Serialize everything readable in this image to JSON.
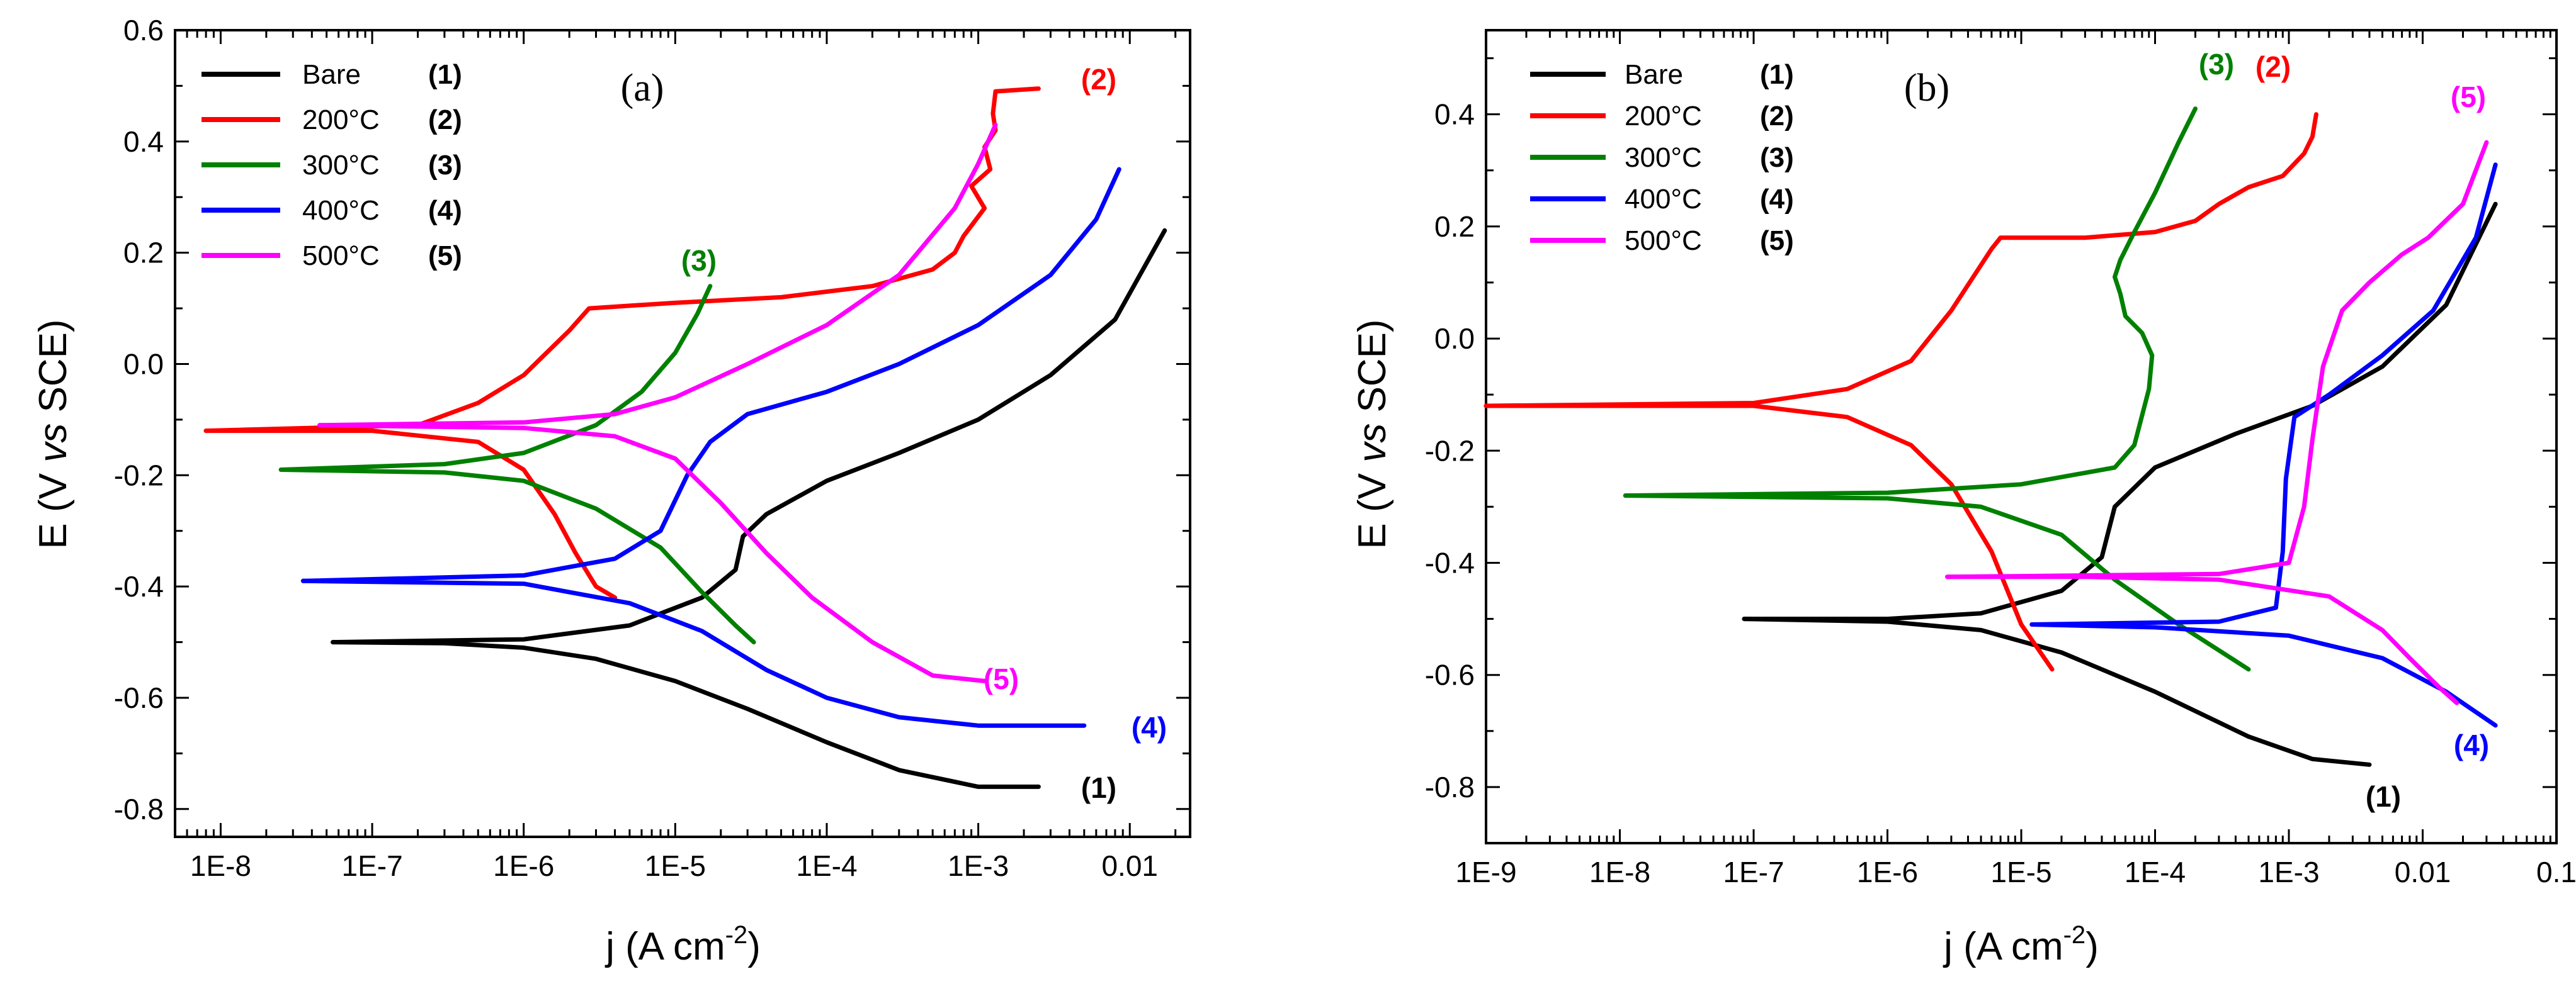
{
  "colors": {
    "Bare": "#000000",
    "200°C": "#ff0000",
    "300°C": "#008000",
    "400°C": "#0000ff",
    "500°C": "#ff00ff"
  },
  "chart_data": [
    {
      "type": "line",
      "panel": "(a)",
      "xlabel": "j (A cm",
      "xlabel_sup": "-2",
      "xlabel_suffix": ")",
      "ylabel": "E (V",
      "ylabel_vs": "vs",
      "ylabel_suffix": "SCE)",
      "xscale": "log",
      "xlim": [
        5e-09,
        0.025
      ],
      "ylim": [
        -0.85,
        0.6
      ],
      "xticks": [
        1e-08,
        1e-07,
        1e-06,
        1e-05,
        0.0001,
        0.001,
        0.01
      ],
      "xtick_labels": [
        "1E-8",
        "1E-7",
        "1E-6",
        "1E-5",
        "1E-4",
        "1E-3",
        "0.01"
      ],
      "yticks": [
        -0.8,
        -0.6,
        -0.4,
        -0.2,
        0.0,
        0.2,
        0.4,
        0.6
      ],
      "ytick_labels": [
        "-0.8",
        "-0.6",
        "-0.4",
        "-0.2",
        "0.0",
        "0.2",
        "0.4",
        "0.6"
      ],
      "legend_position": "top-left",
      "legend": [
        {
          "name": "Bare",
          "num": "(1)"
        },
        {
          "name": "200°C",
          "num": "(2)"
        },
        {
          "name": "300°C",
          "num": "(3)"
        },
        {
          "name": "400°C",
          "num": "(4)"
        },
        {
          "name": "500°C",
          "num": "(5)"
        }
      ],
      "series": [
        {
          "name": "Bare",
          "label": "(1)",
          "cathodic": [
            [
              5.5e-08,
              -0.5
            ],
            [
              3e-07,
              -0.502
            ],
            [
              1e-06,
              -0.51
            ],
            [
              3e-06,
              -0.53
            ],
            [
              1e-05,
              -0.57
            ],
            [
              3e-05,
              -0.62
            ],
            [
              0.0001,
              -0.68
            ],
            [
              0.0003,
              -0.73
            ],
            [
              0.001,
              -0.76
            ],
            [
              0.0025,
              -0.76
            ]
          ],
          "anodic": [
            [
              5.5e-08,
              -0.5
            ],
            [
              1e-06,
              -0.495
            ],
            [
              5e-06,
              -0.47
            ],
            [
              1.5e-05,
              -0.42
            ],
            [
              2.5e-05,
              -0.37
            ],
            [
              2.8e-05,
              -0.31
            ],
            [
              4e-05,
              -0.27
            ],
            [
              0.0001,
              -0.21
            ],
            [
              0.0003,
              -0.16
            ],
            [
              0.001,
              -0.1
            ],
            [
              0.003,
              -0.02
            ],
            [
              0.008,
              0.08
            ],
            [
              0.017,
              0.24
            ]
          ]
        },
        {
          "name": "200°C",
          "label": "(2)",
          "cathodic": [
            [
              8e-09,
              -0.12
            ],
            [
              1e-07,
              -0.12
            ],
            [
              5e-07,
              -0.14
            ],
            [
              1e-06,
              -0.19
            ],
            [
              1.6e-06,
              -0.27
            ],
            [
              2.2e-06,
              -0.34
            ],
            [
              3e-06,
              -0.4
            ],
            [
              4e-06,
              -0.42
            ]
          ],
          "anodic": [
            [
              8e-09,
              -0.12
            ],
            [
              2e-07,
              -0.11
            ],
            [
              5e-07,
              -0.07
            ],
            [
              1e-06,
              -0.02
            ],
            [
              2e-06,
              0.06
            ],
            [
              2.7e-06,
              0.1
            ],
            [
              1e-05,
              0.11
            ],
            [
              5e-05,
              0.12
            ],
            [
              0.0001,
              0.13
            ],
            [
              0.0002,
              0.14
            ],
            [
              0.0005,
              0.17
            ],
            [
              0.0007,
              0.2
            ],
            [
              0.0008,
              0.23
            ],
            [
              0.0011,
              0.28
            ],
            [
              0.0009,
              0.32
            ],
            [
              0.0012,
              0.35
            ],
            [
              0.0011,
              0.39
            ],
            [
              0.0013,
              0.42
            ],
            [
              0.00125,
              0.45
            ],
            [
              0.0013,
              0.49
            ],
            [
              0.0025,
              0.495
            ]
          ]
        },
        {
          "name": "300°C",
          "label": "(3)",
          "cathodic": [
            [
              2.5e-08,
              -0.19
            ],
            [
              3e-07,
              -0.195
            ],
            [
              1e-06,
              -0.21
            ],
            [
              3e-06,
              -0.26
            ],
            [
              8e-06,
              -0.33
            ],
            [
              1.5e-05,
              -0.41
            ],
            [
              2.5e-05,
              -0.47
            ],
            [
              3.3e-05,
              -0.5
            ]
          ],
          "anodic": [
            [
              2.5e-08,
              -0.19
            ],
            [
              3e-07,
              -0.18
            ],
            [
              1e-06,
              -0.16
            ],
            [
              3e-06,
              -0.11
            ],
            [
              6e-06,
              -0.05
            ],
            [
              1e-05,
              0.02
            ],
            [
              1.4e-05,
              0.09
            ],
            [
              1.7e-05,
              0.14
            ]
          ]
        },
        {
          "name": "400°C",
          "label": "(4)",
          "cathodic": [
            [
              3.5e-08,
              -0.39
            ],
            [
              1e-06,
              -0.395
            ],
            [
              5e-06,
              -0.43
            ],
            [
              1.5e-05,
              -0.48
            ],
            [
              4e-05,
              -0.55
            ],
            [
              0.0001,
              -0.6
            ],
            [
              0.0003,
              -0.635
            ],
            [
              0.001,
              -0.65
            ],
            [
              0.005,
              -0.65
            ]
          ],
          "anodic": [
            [
              3.5e-08,
              -0.39
            ],
            [
              1e-06,
              -0.38
            ],
            [
              4e-06,
              -0.35
            ],
            [
              8e-06,
              -0.3
            ],
            [
              1.2e-05,
              -0.2
            ],
            [
              1.7e-05,
              -0.14
            ],
            [
              3e-05,
              -0.09
            ],
            [
              0.0001,
              -0.05
            ],
            [
              0.0003,
              0.0
            ],
            [
              0.001,
              0.07
            ],
            [
              0.003,
              0.16
            ],
            [
              0.006,
              0.26
            ],
            [
              0.0085,
              0.35
            ]
          ]
        },
        {
          "name": "500°C",
          "label": "(5)",
          "cathodic": [
            [
              4.5e-08,
              -0.11
            ],
            [
              1e-06,
              -0.115
            ],
            [
              4e-06,
              -0.13
            ],
            [
              1e-05,
              -0.17
            ],
            [
              2e-05,
              -0.25
            ],
            [
              4e-05,
              -0.34
            ],
            [
              8e-05,
              -0.42
            ],
            [
              0.0002,
              -0.5
            ],
            [
              0.0005,
              -0.56
            ],
            [
              0.0011,
              -0.57
            ]
          ],
          "anodic": [
            [
              4.5e-08,
              -0.11
            ],
            [
              1e-06,
              -0.105
            ],
            [
              4e-06,
              -0.09
            ],
            [
              1e-05,
              -0.06
            ],
            [
              3e-05,
              0.0
            ],
            [
              0.0001,
              0.07
            ],
            [
              0.0003,
              0.16
            ],
            [
              0.0007,
              0.28
            ],
            [
              0.001,
              0.36
            ],
            [
              0.0013,
              0.43
            ]
          ]
        }
      ]
    },
    {
      "type": "line",
      "panel": "(b)",
      "xlabel": "j (A cm",
      "xlabel_sup": "-2",
      "xlabel_suffix": ")",
      "ylabel": "E (V",
      "ylabel_vs": "vs",
      "ylabel_suffix": "SCE)",
      "xscale": "log",
      "xlim": [
        1e-09,
        0.1
      ],
      "ylim": [
        -0.9,
        0.55
      ],
      "xticks": [
        1e-09,
        1e-08,
        1e-07,
        1e-06,
        1e-05,
        0.0001,
        0.001,
        0.01,
        0.1
      ],
      "xtick_labels": [
        "1E-9",
        "1E-8",
        "1E-7",
        "1E-6",
        "1E-5",
        "1E-4",
        "1E-3",
        "0.01",
        "0.1"
      ],
      "yticks": [
        -0.8,
        -0.6,
        -0.4,
        -0.2,
        0.0,
        0.2,
        0.4
      ],
      "ytick_labels": [
        "-0.8",
        "-0.6",
        "-0.4",
        "-0.2",
        "0.0",
        "0.2",
        "0.4"
      ],
      "legend_position": "top-left",
      "legend": [
        {
          "name": "Bare",
          "num": "(1)"
        },
        {
          "name": "200°C",
          "num": "(2)"
        },
        {
          "name": "300°C",
          "num": "(3)"
        },
        {
          "name": "400°C",
          "num": "(4)"
        },
        {
          "name": "500°C",
          "num": "(5)"
        }
      ],
      "series": [
        {
          "name": "Bare",
          "label": "(1)",
          "cathodic": [
            [
              8.5e-08,
              -0.5
            ],
            [
              1e-06,
              -0.505
            ],
            [
              5e-06,
              -0.52
            ],
            [
              2e-05,
              -0.56
            ],
            [
              0.0001,
              -0.63
            ],
            [
              0.0005,
              -0.71
            ],
            [
              0.0015,
              -0.75
            ],
            [
              0.004,
              -0.76
            ]
          ],
          "anodic": [
            [
              8.5e-08,
              -0.5
            ],
            [
              1e-06,
              -0.5
            ],
            [
              5e-06,
              -0.49
            ],
            [
              2e-05,
              -0.45
            ],
            [
              4e-05,
              -0.39
            ],
            [
              5e-05,
              -0.3
            ],
            [
              0.0001,
              -0.23
            ],
            [
              0.0004,
              -0.17
            ],
            [
              0.0015,
              -0.12
            ],
            [
              0.005,
              -0.05
            ],
            [
              0.015,
              0.06
            ],
            [
              0.035,
              0.24
            ]
          ]
        },
        {
          "name": "200°C",
          "label": "(2)",
          "cathodic": [
            [
              1e-09,
              -0.12
            ],
            [
              1e-07,
              -0.12
            ],
            [
              5e-07,
              -0.14
            ],
            [
              1.5e-06,
              -0.19
            ],
            [
              3e-06,
              -0.26
            ],
            [
              6e-06,
              -0.38
            ],
            [
              1e-05,
              -0.51
            ],
            [
              1.7e-05,
              -0.59
            ]
          ],
          "anodic": [
            [
              1e-09,
              -0.12
            ],
            [
              1e-07,
              -0.115
            ],
            [
              5e-07,
              -0.09
            ],
            [
              1.5e-06,
              -0.04
            ],
            [
              3e-06,
              0.05
            ],
            [
              6e-06,
              0.16
            ],
            [
              7e-06,
              0.18
            ],
            [
              3e-05,
              0.18
            ],
            [
              0.0001,
              0.19
            ],
            [
              0.0002,
              0.21
            ],
            [
              0.0003,
              0.24
            ],
            [
              0.0005,
              0.27
            ],
            [
              0.0009,
              0.29
            ],
            [
              0.0013,
              0.33
            ],
            [
              0.0015,
              0.36
            ],
            [
              0.0016,
              0.4
            ]
          ]
        },
        {
          "name": "300°C",
          "label": "(3)",
          "cathodic": [
            [
              1.1e-08,
              -0.28
            ],
            [
              1e-06,
              -0.285
            ],
            [
              5e-06,
              -0.3
            ],
            [
              2e-05,
              -0.35
            ],
            [
              5e-05,
              -0.43
            ],
            [
              0.00015,
              -0.51
            ],
            [
              0.0005,
              -0.59
            ]
          ],
          "anodic": [
            [
              1.1e-08,
              -0.28
            ],
            [
              1e-06,
              -0.275
            ],
            [
              1e-05,
              -0.26
            ],
            [
              5e-05,
              -0.23
            ],
            [
              7e-05,
              -0.19
            ],
            [
              9e-05,
              -0.09
            ],
            [
              9.5e-05,
              -0.03
            ],
            [
              8e-05,
              0.01
            ],
            [
              6e-05,
              0.04
            ],
            [
              5.5e-05,
              0.08
            ],
            [
              5e-05,
              0.11
            ],
            [
              5.5e-05,
              0.14
            ],
            [
              7e-05,
              0.19
            ],
            [
              0.0001,
              0.26
            ],
            [
              0.00015,
              0.35
            ],
            [
              0.0002,
              0.41
            ]
          ]
        },
        {
          "name": "400°C",
          "label": "(4)",
          "cathodic": [
            [
              1.2e-05,
              -0.51
            ],
            [
              0.0001,
              -0.515
            ],
            [
              0.001,
              -0.53
            ],
            [
              0.005,
              -0.57
            ],
            [
              0.015,
              -0.63
            ],
            [
              0.035,
              -0.69
            ]
          ],
          "anodic": [
            [
              1.2e-05,
              -0.51
            ],
            [
              0.0003,
              -0.505
            ],
            [
              0.0008,
              -0.48
            ],
            [
              0.0009,
              -0.38
            ],
            [
              0.00095,
              -0.25
            ],
            [
              0.0011,
              -0.14
            ],
            [
              0.002,
              -0.1
            ],
            [
              0.005,
              -0.03
            ],
            [
              0.012,
              0.05
            ],
            [
              0.025,
              0.18
            ],
            [
              0.035,
              0.31
            ]
          ]
        },
        {
          "name": "500°C",
          "label": "(5)",
          "cathodic": [
            [
              2.8e-06,
              -0.425
            ],
            [
              3e-05,
              -0.425
            ],
            [
              0.0003,
              -0.43
            ],
            [
              0.002,
              -0.46
            ],
            [
              0.005,
              -0.52
            ],
            [
              0.008,
              -0.57
            ],
            [
              0.013,
              -0.62
            ],
            [
              0.018,
              -0.65
            ]
          ],
          "anodic": [
            [
              2.8e-06,
              -0.425
            ],
            [
              0.0003,
              -0.42
            ],
            [
              0.001,
              -0.4
            ],
            [
              0.0013,
              -0.3
            ],
            [
              0.0015,
              -0.18
            ],
            [
              0.0018,
              -0.05
            ],
            [
              0.0025,
              0.05
            ],
            [
              0.004,
              0.1
            ],
            [
              0.007,
              0.15
            ],
            [
              0.011,
              0.18
            ],
            [
              0.02,
              0.24
            ],
            [
              0.03,
              0.35
            ]
          ]
        }
      ]
    }
  ]
}
